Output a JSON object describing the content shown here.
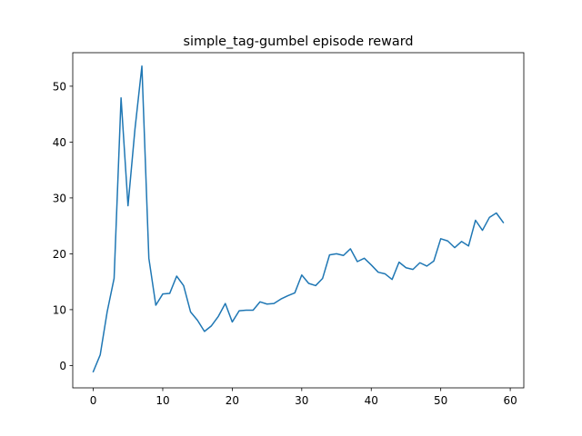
{
  "chart_data": {
    "type": "line",
    "title": "simple_tag-gumbel episode reward",
    "xlabel": "",
    "ylabel": "",
    "xlim": [
      -2.95,
      61.95
    ],
    "ylim": [
      -4.0,
      56.0
    ],
    "xticks": [
      0,
      10,
      20,
      30,
      40,
      50,
      60
    ],
    "yticks": [
      0,
      10,
      20,
      30,
      40,
      50
    ],
    "xtick_labels": [
      "0",
      "10",
      "20",
      "30",
      "40",
      "50",
      "60"
    ],
    "ytick_labels": [
      "0",
      "10",
      "20",
      "30",
      "40",
      "50"
    ],
    "grid": false,
    "legend": "none",
    "line_color": "#1f77b4",
    "series": [
      {
        "x": [
          0,
          1,
          2,
          3,
          4,
          5,
          6,
          7,
          8,
          9,
          10,
          11,
          12,
          13,
          14,
          15,
          16,
          17,
          18,
          19,
          20,
          21,
          22,
          23,
          24,
          25,
          26,
          27,
          28,
          29,
          30,
          31,
          32,
          33,
          34,
          35,
          36,
          37,
          38,
          39,
          40,
          41,
          42,
          43,
          44,
          45,
          46,
          47,
          48,
          49,
          50,
          51,
          52,
          53,
          54,
          55,
          56,
          57,
          58,
          59
        ],
        "values": [
          -1.1,
          1.9,
          9.6,
          15.6,
          47.9,
          28.6,
          42.3,
          53.6,
          19.2,
          10.8,
          12.8,
          12.9,
          16.0,
          14.3,
          9.6,
          8.1,
          6.1,
          7.1,
          8.8,
          11.1,
          7.8,
          9.8,
          9.9,
          9.9,
          11.4,
          11.0,
          11.1,
          11.9,
          12.5,
          13.0,
          16.2,
          14.7,
          14.3,
          15.6,
          19.8,
          20.0,
          19.7,
          20.9,
          18.6,
          19.2,
          18.0,
          16.7,
          16.4,
          15.4,
          18.5,
          17.5,
          17.2,
          18.4,
          17.8,
          18.7,
          22.7,
          22.3,
          21.1,
          22.2,
          21.4,
          26.0,
          24.2,
          26.5,
          27.3,
          25.6
        ]
      }
    ]
  }
}
